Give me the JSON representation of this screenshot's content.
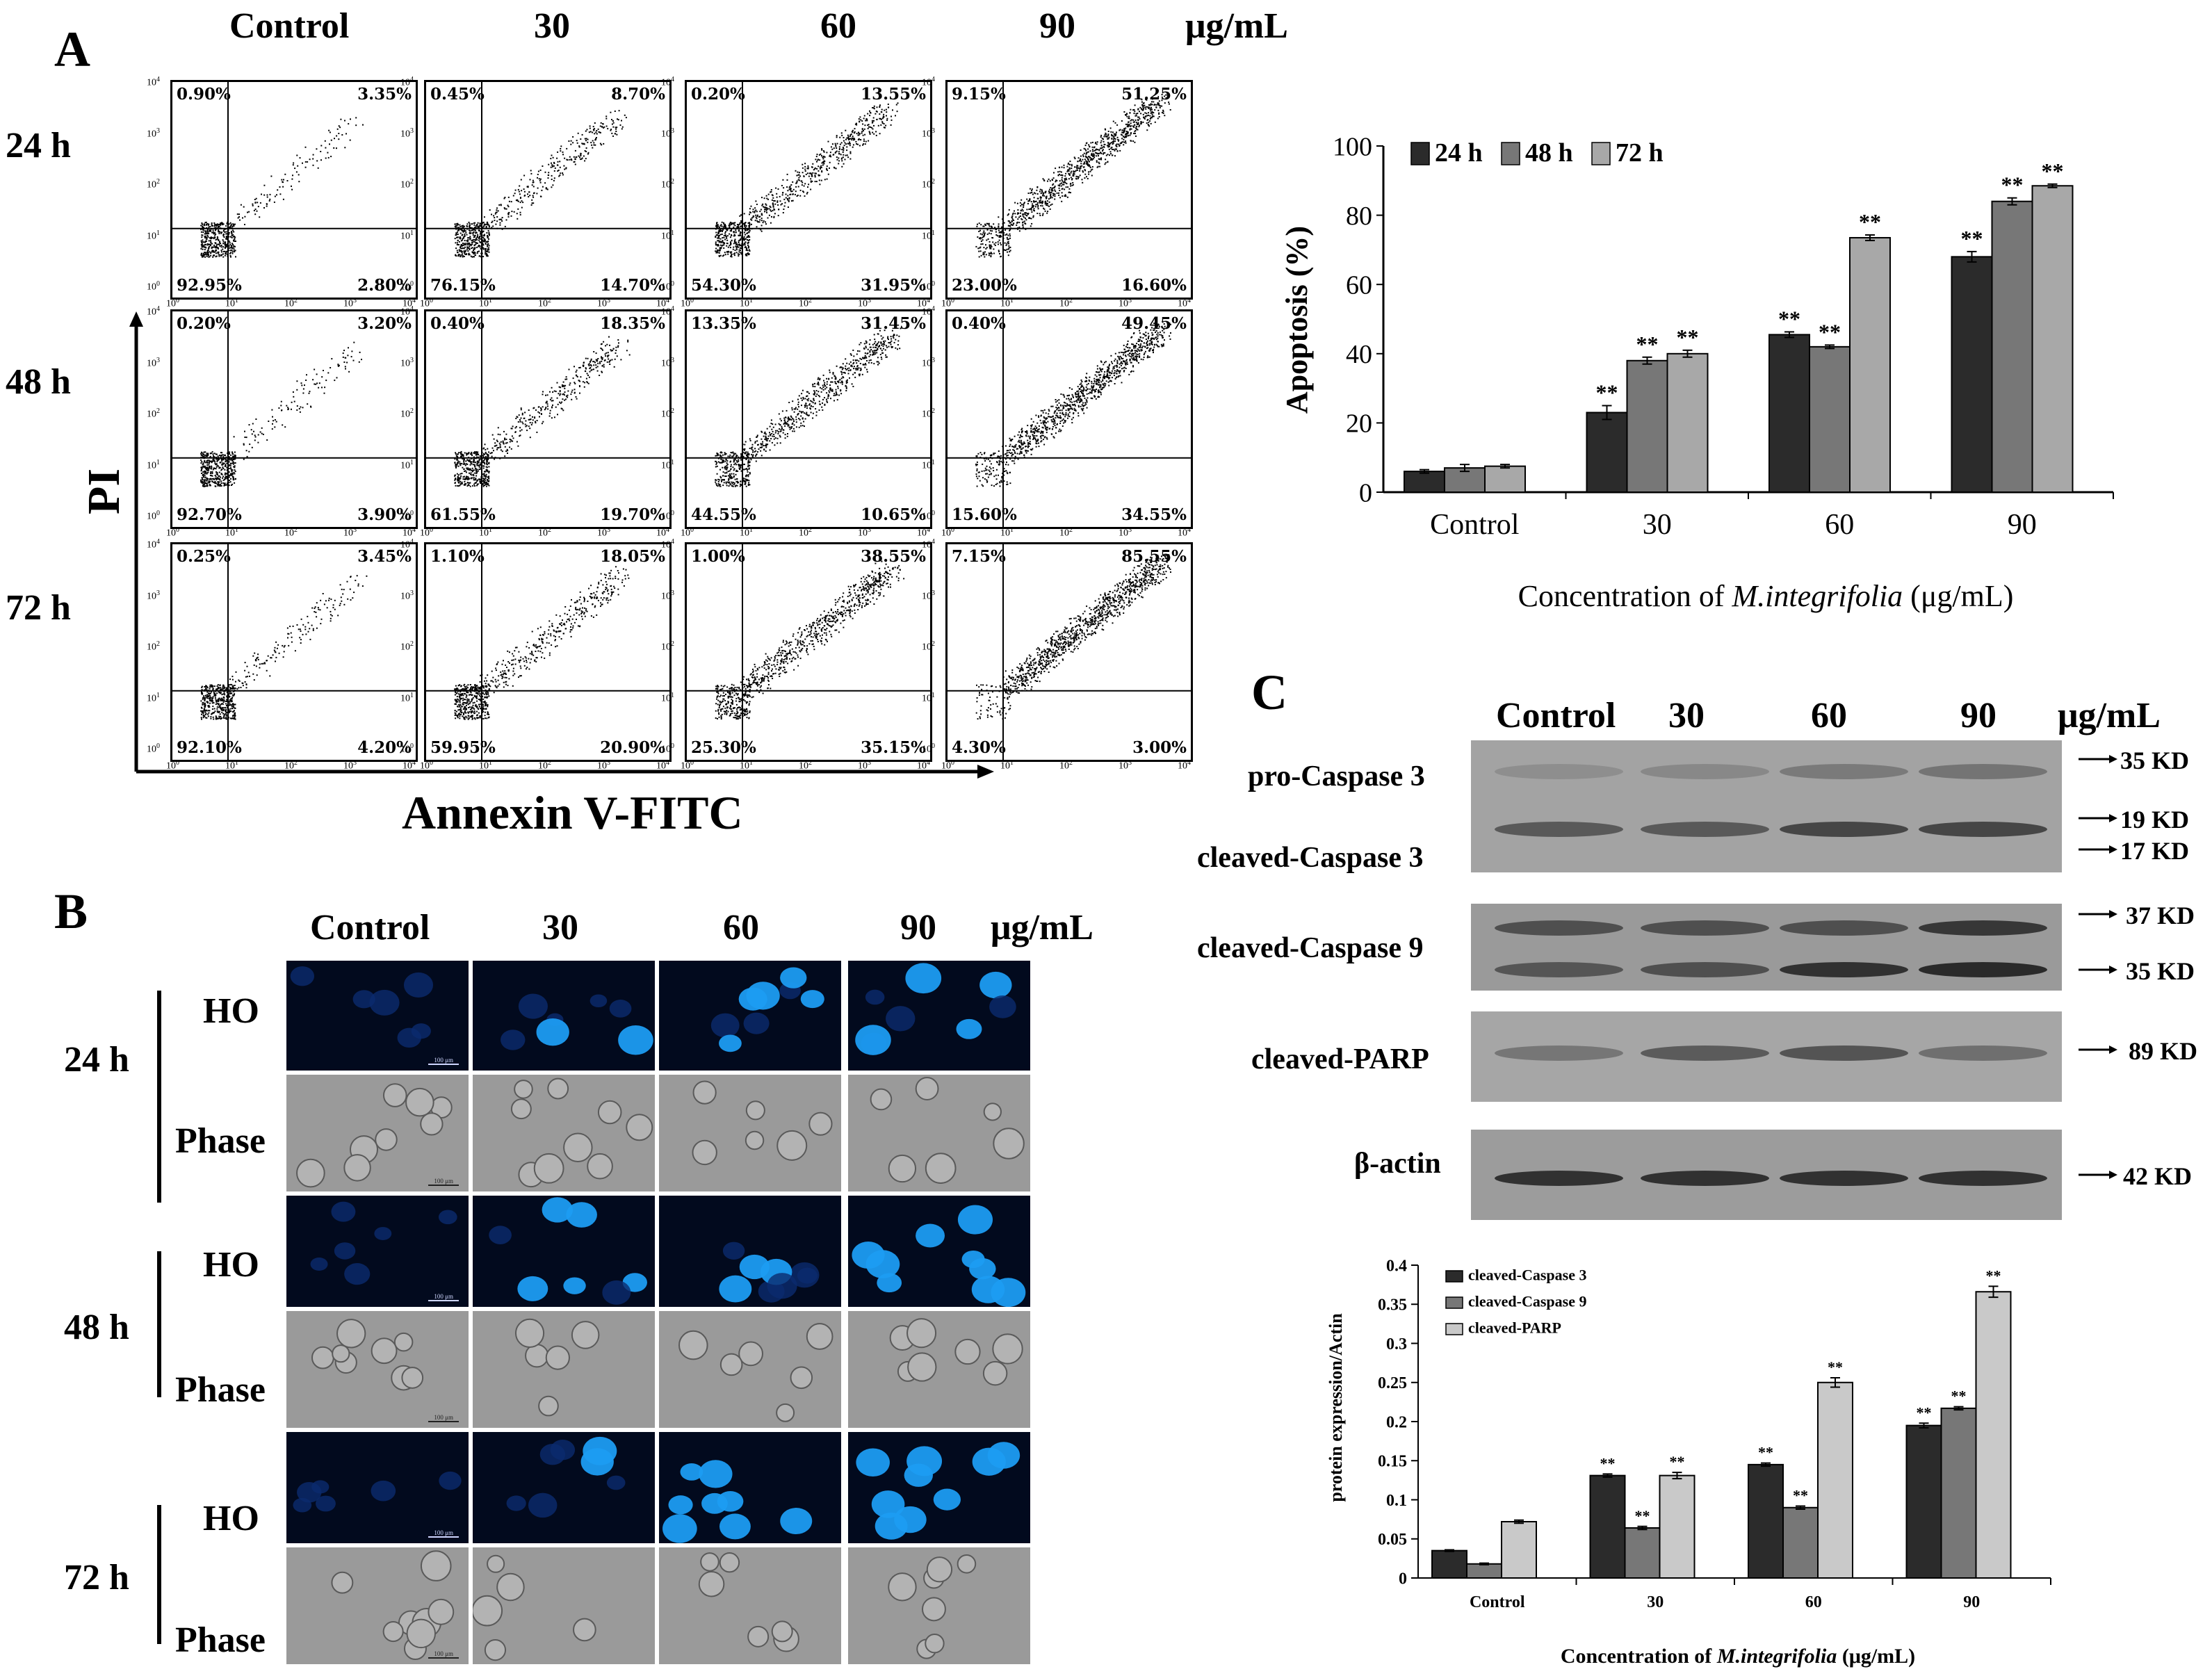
{
  "panels": {
    "a": "A",
    "b": "B",
    "c": "C"
  },
  "flow": {
    "col_headers": [
      "Control",
      "30",
      "60",
      "90",
      "μg/mL"
    ],
    "row_labels": [
      "24 h",
      "48 h",
      "72 h"
    ],
    "y_axis": "PI",
    "x_axis": "Annexin V-FITC",
    "tick_labels": [
      "10",
      "0",
      "1",
      "2",
      "3",
      "4"
    ],
    "quadrants": [
      [
        {
          "ul": "0.90%",
          "ur": "3.35%",
          "ll": "92.95%",
          "lr": "2.80%"
        },
        {
          "ul": "0.45%",
          "ur": "8.70%",
          "ll": "76.15%",
          "lr": "14.70%"
        },
        {
          "ul": "0.20%",
          "ur": "13.55%",
          "ll": "54.30%",
          "lr": "31.95%"
        },
        {
          "ul": "9.15%",
          "ur": "51.25%",
          "ll": "23.00%",
          "lr": "16.60%"
        }
      ],
      [
        {
          "ul": "0.20%",
          "ur": "3.20%",
          "ll": "92.70%",
          "lr": "3.90%"
        },
        {
          "ul": "0.40%",
          "ur": "18.35%",
          "ll": "61.55%",
          "lr": "19.70%"
        },
        {
          "ul": "13.35%",
          "ur": "31.45%",
          "ll": "44.55%",
          "lr": "10.65%"
        },
        {
          "ul": "0.40%",
          "ur": "49.45%",
          "ll": "15.60%",
          "lr": "34.55%"
        }
      ],
      [
        {
          "ul": "0.25%",
          "ur": "3.45%",
          "ll": "92.10%",
          "lr": "4.20%"
        },
        {
          "ul": "1.10%",
          "ur": "18.05%",
          "ll": "59.95%",
          "lr": "20.90%"
        },
        {
          "ul": "1.00%",
          "ur": "38.55%",
          "ll": "25.30%",
          "lr": "35.15%"
        },
        {
          "ul": "7.15%",
          "ur": "85.55%",
          "ll": "4.30%",
          "lr": "3.00%"
        }
      ]
    ]
  },
  "hoechst": {
    "col_headers": [
      "Control",
      "30",
      "60",
      "90",
      "μg/mL"
    ],
    "times": [
      "24 h",
      "48 h",
      "72 h"
    ],
    "row_types": [
      "HO",
      "Phase"
    ],
    "scale_bar": "100 μm"
  },
  "western": {
    "col_headers": [
      "Control",
      "30",
      "60",
      "90",
      "μg/mL"
    ],
    "rows": [
      {
        "label": "pro-Caspase 3",
        "marker": "35 KD"
      },
      {
        "label": "cleaved-Caspase 3",
        "marker": "17 KD"
      },
      {
        "label": "cleaved-Caspase 9",
        "marker": "37 KD"
      },
      {
        "label": "cleaved-PARP",
        "marker": "89 KD"
      },
      {
        "label": "β-actin",
        "marker": "42 KD"
      }
    ],
    "extra_markers": [
      "19 KD",
      "35 KD"
    ]
  },
  "chart_data": [
    {
      "type": "bar",
      "title": "",
      "ylabel": "Apoptosis (%)",
      "xlabel_prefix": "Concentration of ",
      "xlabel_italic": "M.integrifolia",
      "xlabel_suffix": " (μg/mL)",
      "categories": [
        "Control",
        "30",
        "60",
        "90"
      ],
      "ylim": [
        0,
        100
      ],
      "yticks": [
        "0",
        "20",
        "40",
        "60",
        "80",
        "100"
      ],
      "series": [
        {
          "name": "24 h",
          "values": [
            6,
            23,
            45.5,
            68
          ],
          "errors": [
            0.5,
            2,
            0.8,
            1.5
          ],
          "color": "#2b2b2b"
        },
        {
          "name": "48 h",
          "values": [
            7,
            38,
            42,
            84
          ],
          "errors": [
            1,
            1,
            0.5,
            1
          ],
          "color": "#777777"
        },
        {
          "name": "72 h",
          "values": [
            7.5,
            40,
            73.5,
            88.5
          ],
          "errors": [
            0.5,
            1,
            0.8,
            0.5
          ],
          "color": "#a8a8a8"
        }
      ],
      "significance": "**",
      "legend": "top-left"
    },
    {
      "type": "bar",
      "title": "",
      "ylabel": "protein expression/Actin",
      "xlabel_prefix": "Concentration of ",
      "xlabel_italic": "M.integrifolia",
      "xlabel_suffix": " (μg/mL)",
      "categories": [
        "Control",
        "30",
        "60",
        "90"
      ],
      "ylim": [
        0,
        0.4
      ],
      "yticks": [
        "0",
        "0.05",
        "0.1",
        "0.15",
        "0.2",
        "0.25",
        "0.3",
        "0.35",
        "0.4"
      ],
      "series": [
        {
          "name": "cleaved-Caspase 3",
          "values": [
            0.035,
            0.131,
            0.145,
            0.195
          ],
          "errors": [
            0.001,
            0.002,
            0.002,
            0.003
          ],
          "color": "#2b2b2b"
        },
        {
          "name": "cleaved-Caspase 9",
          "values": [
            0.018,
            0.064,
            0.09,
            0.217
          ],
          "errors": [
            0.001,
            0.002,
            0.002,
            0.002
          ],
          "color": "#777777"
        },
        {
          "name": "cleaved-PARP",
          "values": [
            0.072,
            0.131,
            0.25,
            0.366
          ],
          "errors": [
            0.002,
            0.004,
            0.006,
            0.007
          ],
          "color": "#c9c9c9"
        }
      ],
      "significance": "**",
      "legend": "top-left"
    }
  ]
}
